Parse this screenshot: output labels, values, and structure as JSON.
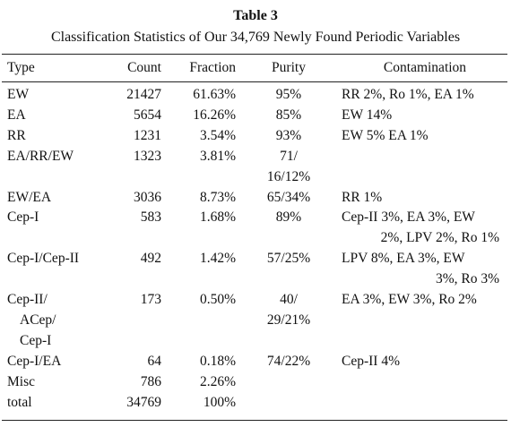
{
  "title": "Table 3",
  "subtitle": "Classification Statistics of Our 34,769 Newly Found Periodic Variables",
  "table": {
    "header": [
      "Type",
      "Count",
      "Fraction",
      "Purity",
      "Contamination"
    ],
    "rows": [
      [
        [
          "EW"
        ],
        [
          "21427"
        ],
        [
          "61.63%"
        ],
        [
          "95%"
        ],
        [
          "RR 2%, Ro 1%, EA 1%"
        ]
      ],
      [
        [
          "EA"
        ],
        [
          "5654"
        ],
        [
          "16.26%"
        ],
        [
          "85%"
        ],
        [
          "EW 14%"
        ]
      ],
      [
        [
          "RR"
        ],
        [
          "1231"
        ],
        [
          "3.54%"
        ],
        [
          "93%"
        ],
        [
          "EW 5% EA 1%"
        ]
      ],
      [
        [
          "EA/RR/EW"
        ],
        [
          "1323"
        ],
        [
          "3.81%"
        ],
        [
          "71/",
          "16/12%"
        ],
        []
      ],
      [
        [
          "EW/EA"
        ],
        [
          "3036"
        ],
        [
          "8.73%"
        ],
        [
          "65/34%"
        ],
        [
          "RR 1%"
        ]
      ],
      [
        [
          "Cep-I"
        ],
        [
          "583"
        ],
        [
          "1.68%"
        ],
        [
          "89%"
        ],
        [
          "Cep-II 3%, EA 3%, EW",
          "2%, LPV 2%, Ro 1%"
        ]
      ],
      [
        [
          "Cep-I/Cep-II"
        ],
        [
          "492"
        ],
        [
          "1.42%"
        ],
        [
          "57/25%"
        ],
        [
          "LPV 8%, EA 3%, EW",
          "3%, Ro 3%"
        ]
      ],
      [
        [
          "Cep-II/",
          "ACep/",
          "Cep-I"
        ],
        [
          "173"
        ],
        [
          "0.50%"
        ],
        [
          "40/",
          "29/21%"
        ],
        [
          "EA 3%, EW 3%, Ro 2%"
        ]
      ],
      [
        [
          "Cep-I/EA"
        ],
        [
          "64"
        ],
        [
          "0.18%"
        ],
        [
          "74/22%"
        ],
        [
          "Cep-II 4%"
        ]
      ],
      [
        [
          "Misc"
        ],
        [
          "786"
        ],
        [
          "2.26%"
        ],
        [],
        []
      ],
      [
        [
          "total"
        ],
        [
          "34769"
        ],
        [
          "100%"
        ],
        [],
        []
      ]
    ]
  }
}
